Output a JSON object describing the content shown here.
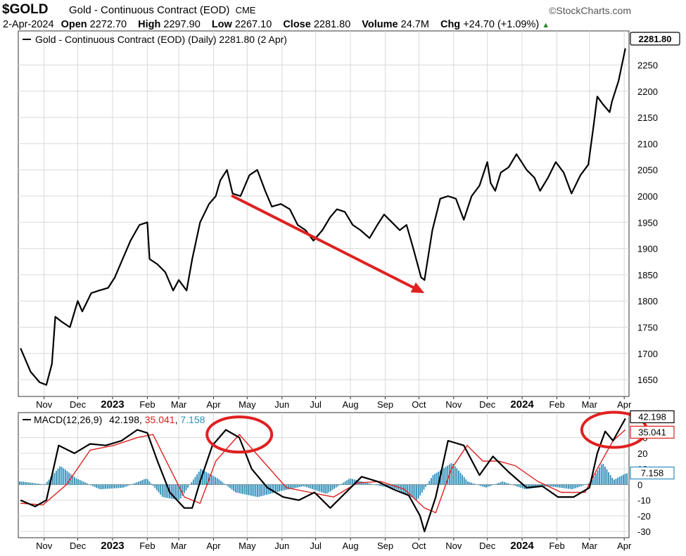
{
  "header": {
    "symbol": "$GOLD",
    "name": "Gold - Continuous Contract (EOD)",
    "exchange": "CME",
    "brand": "©StockCharts.com",
    "date": "2-Apr-2024",
    "open_label": "Open",
    "open": "2272.70",
    "high_label": "High",
    "high": "2297.90",
    "low_label": "Low",
    "low": "2267.10",
    "close_label": "Close",
    "close": "2281.80",
    "volume_label": "Volume",
    "volume": "24.7M",
    "chg_label": "Chg",
    "chg": "+24.70 (+1.09%)"
  },
  "chart_data": [
    {
      "type": "line",
      "legend": "Gold - Continuous Contract (EOD) (Daily) 2281.80 (2 Apr)",
      "last_value_label": "2281.80",
      "y_ticks": [
        1650,
        1700,
        1750,
        1800,
        1850,
        1900,
        1950,
        2000,
        2050,
        2100,
        2150,
        2200,
        2250
      ],
      "ylim": [
        1618,
        2315
      ],
      "x_ticks": [
        "Nov",
        "Dec",
        "2023",
        "Feb",
        "Mar",
        "Apr",
        "May",
        "Jun",
        "Jul",
        "Aug",
        "Sep",
        "Oct",
        "Nov",
        "Dec",
        "2024",
        "Feb",
        "Mar",
        "Apr"
      ],
      "x_labels_bold": [
        "2023",
        "2024"
      ],
      "series": [
        {
          "x": [
            "2022-10-11",
            "2022-10-20",
            "2022-10-28",
            "2022-11-03",
            "2022-11-08",
            "2022-11-11",
            "2022-11-17",
            "2022-11-24",
            "2022-12-01",
            "2022-12-05",
            "2022-12-13",
            "2022-12-20",
            "2022-12-28",
            "2023-01-03",
            "2023-01-10",
            "2023-01-17",
            "2023-01-25",
            "2023-02-01",
            "2023-02-03",
            "2023-02-10",
            "2023-02-17",
            "2023-02-24",
            "2023-03-01",
            "2023-03-08",
            "2023-03-13",
            "2023-03-20",
            "2023-03-28",
            "2023-04-03",
            "2023-04-07",
            "2023-04-13",
            "2023-04-18",
            "2023-04-25",
            "2023-05-03",
            "2023-05-10",
            "2023-05-17",
            "2023-05-23",
            "2023-05-31",
            "2023-06-08",
            "2023-06-15",
            "2023-06-22",
            "2023-06-29",
            "2023-07-07",
            "2023-07-14",
            "2023-07-20",
            "2023-07-27",
            "2023-08-03",
            "2023-08-10",
            "2023-08-18",
            "2023-08-25",
            "2023-08-31",
            "2023-09-07",
            "2023-09-14",
            "2023-09-20",
            "2023-09-26",
            "2023-10-03",
            "2023-10-06",
            "2023-10-13",
            "2023-10-20",
            "2023-10-27",
            "2023-11-03",
            "2023-11-10",
            "2023-11-17",
            "2023-11-24",
            "2023-12-01",
            "2023-12-04",
            "2023-12-08",
            "2023-12-13",
            "2023-12-20",
            "2023-12-27",
            "2024-01-05",
            "2024-01-12",
            "2024-01-17",
            "2024-01-24",
            "2024-01-31",
            "2024-02-07",
            "2024-02-14",
            "2024-02-22",
            "2024-02-29",
            "2024-03-05",
            "2024-03-08",
            "2024-03-13",
            "2024-03-19",
            "2024-03-21",
            "2024-03-27",
            "2024-04-02"
          ],
          "values": [
            1710,
            1665,
            1645,
            1640,
            1680,
            1770,
            1760,
            1750,
            1800,
            1780,
            1815,
            1820,
            1825,
            1845,
            1880,
            1915,
            1945,
            1950,
            1880,
            1870,
            1855,
            1820,
            1840,
            1820,
            1880,
            1950,
            1985,
            2000,
            2030,
            2050,
            2005,
            2000,
            2040,
            2050,
            2010,
            1980,
            1985,
            1975,
            1945,
            1935,
            1915,
            1935,
            1960,
            1975,
            1970,
            1945,
            1935,
            1920,
            1945,
            1965,
            1950,
            1935,
            1945,
            1900,
            1845,
            1840,
            1935,
            1995,
            2000,
            1995,
            1955,
            2000,
            2020,
            2065,
            2025,
            2010,
            2045,
            2055,
            2080,
            2050,
            2035,
            2010,
            2035,
            2065,
            2045,
            2005,
            2040,
            2060,
            2140,
            2190,
            2175,
            2160,
            2180,
            2220,
            2281.8
          ]
        }
      ],
      "annotations": [
        {
          "type": "arrow",
          "from": [
            "2023-04-18",
            2000
          ],
          "to": [
            "2023-10-06",
            1815
          ],
          "color": "#e02020"
        }
      ]
    },
    {
      "type": "line",
      "legend_label": "MACD(12,26,9)",
      "legend_values": [
        "42.198",
        "35.041",
        "7.158"
      ],
      "colors": {
        "macd": "#000000",
        "signal": "#e02020",
        "histogram": "#2f8fb8"
      },
      "y_ticks": [
        -30,
        -20,
        -10,
        0,
        10,
        20,
        30
      ],
      "ylim": [
        -34,
        46
      ],
      "x_ticks": [
        "Nov",
        "Dec",
        "2023",
        "Feb",
        "Mar",
        "Apr",
        "May",
        "Jun",
        "Jul",
        "Aug",
        "Sep",
        "Oct",
        "Nov",
        "Dec",
        "2024",
        "Feb",
        "Mar",
        "Apr"
      ],
      "series": [
        {
          "name": "MACD(12,26,9)",
          "x": [
            "2022-10-11",
            "2022-10-24",
            "2022-11-03",
            "2022-11-14",
            "2022-11-28",
            "2022-12-12",
            "2022-12-26",
            "2023-01-09",
            "2023-01-23",
            "2023-02-01",
            "2023-02-10",
            "2023-02-21",
            "2023-03-06",
            "2023-03-13",
            "2023-03-20",
            "2023-03-31",
            "2023-04-12",
            "2023-04-24",
            "2023-05-05",
            "2023-05-19",
            "2023-06-02",
            "2023-06-16",
            "2023-06-30",
            "2023-07-14",
            "2023-07-28",
            "2023-08-11",
            "2023-08-25",
            "2023-09-08",
            "2023-09-22",
            "2023-10-02",
            "2023-10-06",
            "2023-10-16",
            "2023-10-27",
            "2023-11-10",
            "2023-11-24",
            "2023-12-06",
            "2023-12-20",
            "2024-01-05",
            "2024-01-19",
            "2024-02-02",
            "2024-02-16",
            "2024-03-01",
            "2024-03-08",
            "2024-03-15",
            "2024-03-22",
            "2024-04-02"
          ],
          "values": [
            -10,
            -14,
            -10,
            25,
            20,
            26,
            25,
            28,
            35,
            33,
            15,
            -5,
            -15,
            -15,
            2,
            25,
            35,
            30,
            10,
            -2,
            -8,
            -10,
            -5,
            -15,
            -5,
            5,
            2,
            -3,
            -7,
            -20,
            -30,
            -8,
            28,
            25,
            6,
            18,
            8,
            -2,
            -1,
            -8,
            -8,
            -2,
            20,
            34,
            28,
            42.198
          ]
        },
        {
          "name": "Signal",
          "x": [
            "2022-10-11",
            "2022-10-31",
            "2022-11-21",
            "2022-12-12",
            "2023-01-02",
            "2023-01-23",
            "2023-02-06",
            "2023-02-20",
            "2023-03-06",
            "2023-03-20",
            "2023-04-03",
            "2023-04-24",
            "2023-05-15",
            "2023-06-05",
            "2023-06-26",
            "2023-07-17",
            "2023-08-07",
            "2023-08-28",
            "2023-09-18",
            "2023-10-06",
            "2023-10-16",
            "2023-10-30",
            "2023-11-13",
            "2023-11-27",
            "2023-12-11",
            "2023-12-26",
            "2024-01-15",
            "2024-02-05",
            "2024-02-26",
            "2024-03-08",
            "2024-03-22",
            "2024-04-02"
          ],
          "values": [
            -12,
            -13,
            0,
            22,
            25,
            30,
            32,
            12,
            -8,
            -12,
            15,
            32,
            15,
            -2,
            -5,
            -8,
            1,
            2,
            -3,
            -15,
            -18,
            10,
            25,
            15,
            15,
            12,
            2,
            -5,
            -5,
            10,
            28,
            35.041
          ]
        },
        {
          "name": "Histogram",
          "x": [
            "2022-10-11",
            "2022-11-01",
            "2022-11-15",
            "2022-11-29",
            "2022-12-20",
            "2023-01-10",
            "2023-01-31",
            "2023-02-14",
            "2023-03-01",
            "2023-03-20",
            "2023-04-04",
            "2023-04-20",
            "2023-05-10",
            "2023-05-31",
            "2023-06-20",
            "2023-07-10",
            "2023-07-31",
            "2023-08-21",
            "2023-09-11",
            "2023-09-29",
            "2023-10-13",
            "2023-10-30",
            "2023-11-13",
            "2023-11-29",
            "2023-12-14",
            "2024-01-03",
            "2024-01-24",
            "2024-02-14",
            "2024-03-01",
            "2024-03-12",
            "2024-03-22",
            "2024-04-02"
          ],
          "values": [
            2,
            0,
            12,
            4,
            -3,
            -2,
            4,
            -8,
            -10,
            10,
            4,
            -5,
            -8,
            -4,
            -1,
            -6,
            4,
            0,
            -3,
            -10,
            6,
            14,
            2,
            -2,
            2,
            -3,
            -1,
            -3,
            1,
            14,
            3,
            7.158
          ]
        }
      ],
      "annotations": [
        {
          "type": "ellipse",
          "center": [
            "2023-04-24",
            32
          ],
          "color": "#e02020"
        },
        {
          "type": "ellipse",
          "center": [
            "2024-03-23",
            35
          ],
          "color": "#e02020"
        }
      ]
    }
  ]
}
